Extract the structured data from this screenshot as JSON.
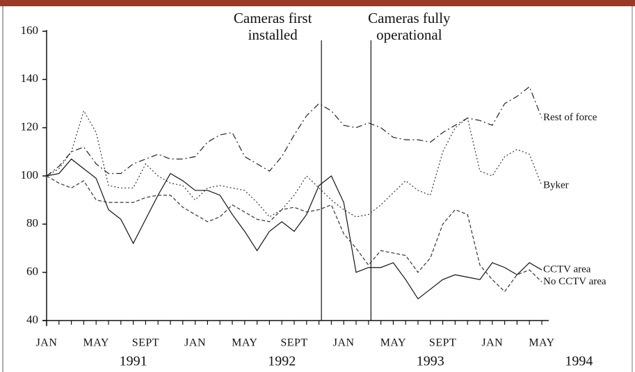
{
  "chart_data": {
    "type": "line",
    "categories": [
      "JAN",
      null,
      null,
      null,
      "MAY",
      null,
      null,
      null,
      "SEPT",
      null,
      null,
      null,
      "JAN",
      null,
      null,
      null,
      "MAY",
      null,
      null,
      null,
      "SEPT",
      null,
      null,
      null,
      "JAN",
      null,
      null,
      null,
      "MAY",
      null,
      null,
      null,
      "SEPT",
      null,
      null,
      null,
      "JAN",
      null,
      null,
      null,
      "MAY"
    ],
    "year_labels": [
      "1991",
      "1992",
      "1993",
      "1994"
    ],
    "annotations": [
      {
        "text": [
          "Cameras first",
          "installed"
        ]
      },
      {
        "text": [
          "Cameras fully",
          "operational"
        ]
      }
    ],
    "ylim": [
      40,
      160
    ],
    "yticks": [
      40,
      60,
      80,
      100,
      120,
      140,
      160
    ],
    "grid": false,
    "series": [
      {
        "name": "Rest of force",
        "color": "#222222",
        "style": "dash-dot",
        "values": [
          100,
          104,
          110,
          112,
          105,
          101,
          101,
          105,
          107,
          109,
          107,
          107,
          108,
          114,
          117,
          118,
          108,
          105,
          102,
          108,
          117,
          125,
          130,
          127,
          121,
          120,
          122,
          120,
          116,
          115,
          115,
          114,
          118,
          121,
          124,
          123,
          121,
          130,
          133,
          137,
          124
        ]
      },
      {
        "name": "Byker",
        "color": "#333333",
        "style": "dotted",
        "values": [
          100,
          103,
          110,
          127,
          118,
          96,
          95,
          95,
          105,
          100,
          97,
          96,
          90,
          95,
          96,
          95,
          94,
          89,
          83,
          86,
          92,
          100,
          95,
          90,
          86,
          83,
          84,
          88,
          93,
          98,
          94,
          92,
          110,
          120,
          124,
          102,
          100,
          108,
          111,
          109,
          96
        ]
      },
      {
        "name": "CCTV area",
        "color": "#111111",
        "style": "solid",
        "values": [
          100,
          101,
          107,
          103,
          99,
          86,
          82,
          72,
          82,
          92,
          101,
          98,
          94,
          94,
          92,
          84,
          77,
          69,
          77,
          81,
          77,
          84,
          96,
          100,
          89,
          60,
          62,
          62,
          64,
          57,
          49,
          53,
          57,
          59,
          58,
          57,
          64,
          62,
          59,
          64,
          61
        ]
      },
      {
        "name": "No CCTV area",
        "color": "#333333",
        "style": "dashed",
        "values": [
          100,
          97,
          95,
          98,
          90,
          89,
          89,
          89,
          91,
          92,
          92,
          87,
          84,
          81,
          83,
          88,
          85,
          82,
          81,
          86,
          87,
          85,
          86,
          88,
          76,
          70,
          63,
          69,
          68,
          67,
          60,
          66,
          80,
          86,
          84,
          63,
          57,
          52,
          59,
          61,
          56
        ]
      }
    ]
  }
}
